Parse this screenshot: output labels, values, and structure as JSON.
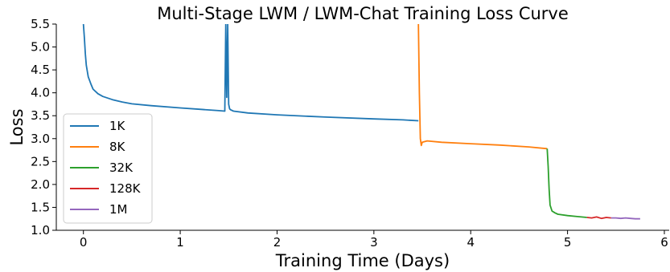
{
  "chart_data": {
    "type": "line",
    "title": "Multi-Stage LWM / LWM-Chat Training Loss Curve",
    "xlabel": "Training Time (Days)",
    "ylabel": "Loss",
    "xlim": [
      -0.28,
      6.05
    ],
    "ylim": [
      1.0,
      5.5
    ],
    "xticks": [
      0,
      1,
      2,
      3,
      4,
      5,
      6
    ],
    "yticks": [
      1.0,
      1.5,
      2.0,
      2.5,
      3.0,
      3.5,
      4.0,
      4.5,
      5.0,
      5.5
    ],
    "xtick_labels": [
      "0",
      "1",
      "2",
      "3",
      "4",
      "5",
      "6"
    ],
    "ytick_labels": [
      "1.0",
      "1.5",
      "2.0",
      "2.5",
      "3.0",
      "3.5",
      "4.0",
      "4.5",
      "5.0",
      "5.5"
    ],
    "grid": false,
    "legend_position": "center-left",
    "series": [
      {
        "name": "1K",
        "color": "#1f77b4",
        "x": [
          0.0,
          0.01,
          0.02,
          0.03,
          0.05,
          0.08,
          0.1,
          0.15,
          0.2,
          0.3,
          0.4,
          0.5,
          0.7,
          1.0,
          1.2,
          1.4,
          1.46,
          1.47,
          1.48,
          1.49,
          1.5,
          1.51,
          1.52,
          1.55,
          1.7,
          2.0,
          2.5,
          3.0,
          3.3,
          3.46
        ],
        "y": [
          5.5,
          5.2,
          4.85,
          4.6,
          4.35,
          4.18,
          4.08,
          3.98,
          3.92,
          3.85,
          3.8,
          3.76,
          3.72,
          3.67,
          3.64,
          3.61,
          3.6,
          5.5,
          3.9,
          5.5,
          3.75,
          3.65,
          3.63,
          3.6,
          3.56,
          3.52,
          3.47,
          3.43,
          3.41,
          3.39
        ]
      },
      {
        "name": "8K",
        "color": "#ff7f0e",
        "x": [
          3.46,
          3.47,
          3.48,
          3.49,
          3.5,
          3.55,
          3.7,
          4.0,
          4.3,
          4.6,
          4.79
        ],
        "y": [
          5.5,
          4.0,
          3.0,
          2.85,
          2.92,
          2.95,
          2.92,
          2.89,
          2.86,
          2.82,
          2.78
        ]
      },
      {
        "name": "32K",
        "color": "#2ca02c",
        "x": [
          4.79,
          4.8,
          4.81,
          4.82,
          4.84,
          4.87,
          4.9,
          5.0,
          5.1,
          5.2
        ],
        "y": [
          2.78,
          2.4,
          1.9,
          1.55,
          1.42,
          1.38,
          1.35,
          1.32,
          1.3,
          1.28
        ]
      },
      {
        "name": "128K",
        "color": "#d62728",
        "x": [
          5.2,
          5.25,
          5.3,
          5.35,
          5.4,
          5.45
        ],
        "y": [
          1.28,
          1.27,
          1.29,
          1.26,
          1.28,
          1.27
        ]
      },
      {
        "name": "1M",
        "color": "#9467bd",
        "x": [
          5.45,
          5.5,
          5.55,
          5.6,
          5.65,
          5.7,
          5.75
        ],
        "y": [
          1.27,
          1.27,
          1.26,
          1.27,
          1.26,
          1.25,
          1.25
        ]
      }
    ]
  }
}
